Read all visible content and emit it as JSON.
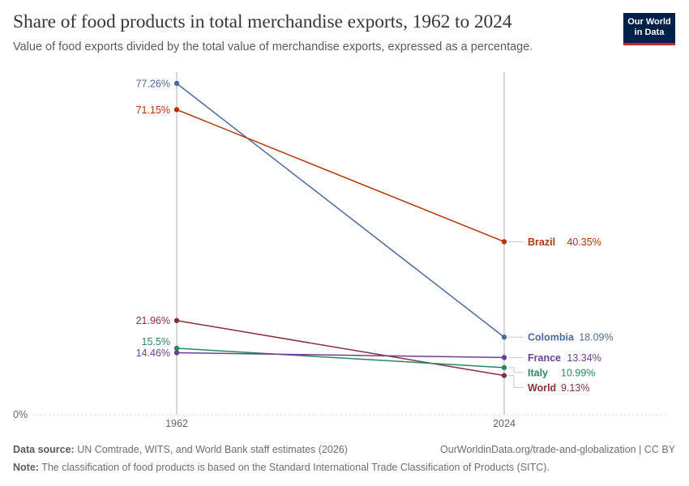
{
  "header": {
    "title": "Share of food products in total merchandise exports, 1962 to 2024",
    "subtitle": "Value of food exports divided by the total value of merchandise exports, expressed as a percentage.",
    "logo_line1": "Our World",
    "logo_line2": "in Data"
  },
  "footer": {
    "source_label": "Data source:",
    "source_text": "UN Comtrade, WITS, and World Bank staff estimates (2026)",
    "url": "OurWorldinData.org/trade-and-globalization | CC BY",
    "note_label": "Note:",
    "note_text": "The classification of food products is based on the Standard International Trade Classification of Products (SITC)."
  },
  "chart_data": {
    "type": "line",
    "subtype": "slope",
    "x": [
      1962,
      2024
    ],
    "xlabels": [
      "1962",
      "2024"
    ],
    "ylim": [
      0,
      77.26
    ],
    "y_tick_label": "0%",
    "series": [
      {
        "name": "Colombia",
        "values": [
          77.26,
          18.09
        ],
        "start_label": "77.26%",
        "end_label": "18.09%",
        "color": "#4c6a9c"
      },
      {
        "name": "Brazil",
        "values": [
          71.15,
          40.35
        ],
        "start_label": "71.15%",
        "end_label": "40.35%",
        "color": "#b13507"
      },
      {
        "name": "World",
        "values": [
          21.96,
          9.13
        ],
        "start_label": "21.96%",
        "end_label": "9.13%",
        "color": "#883039"
      },
      {
        "name": "Italy",
        "values": [
          15.5,
          10.99
        ],
        "start_label": "15.5%",
        "end_label": "10.99%",
        "color": "#2c8465"
      },
      {
        "name": "France",
        "values": [
          14.46,
          13.34
        ],
        "start_label": "14.46%",
        "end_label": "13.34%",
        "color": "#6d3e91"
      }
    ]
  }
}
